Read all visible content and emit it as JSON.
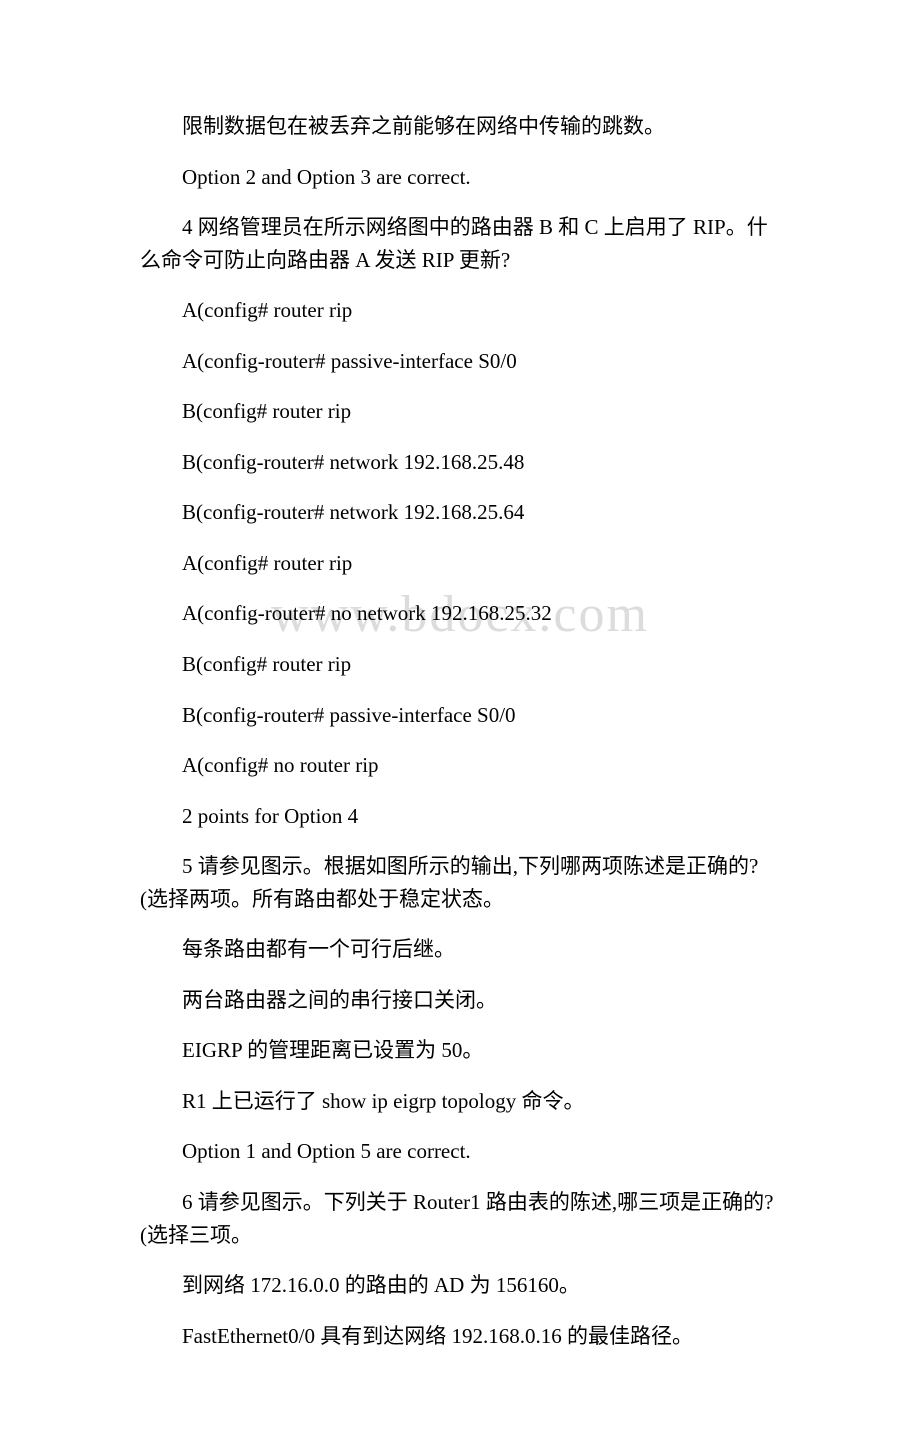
{
  "watermark": "www.bdocx.com",
  "body": {
    "background_color": "#ffffff",
    "text_color": "#000000",
    "watermark_color": "#dcdcdc",
    "font_size_pt": 16,
    "watermark_font_size_pt": 40
  },
  "paragraphs": [
    "限制数据包在被丢弃之前能够在网络中传输的跳数。",
    "Option 2 and Option 3 are correct.",
    "4 网络管理员在所示网络图中的路由器 B 和 C 上启用了 RIP。什么命令可防止向路由器 A 发送 RIP 更新?",
    "A(config# router rip",
    "A(config-router# passive-interface S0/0",
    "B(config# router rip",
    "B(config-router# network 192.168.25.48",
    "B(config-router# network 192.168.25.64",
    "A(config# router rip",
    "A(config-router# no network 192.168.25.32",
    "B(config# router rip",
    "B(config-router# passive-interface S0/0",
    "A(config# no router rip",
    "2 points for Option 4",
    "5 请参见图示。根据如图所示的输出,下列哪两项陈述是正确的?(选择两项。所有路由都处于稳定状态。",
    "每条路由都有一个可行后继。",
    "两台路由器之间的串行接口关闭。",
    "EIGRP 的管理距离已设置为 50。",
    "R1 上已运行了 show ip eigrp topology 命令。",
    "Option 1 and Option 5 are correct.",
    "6 请参见图示。下列关于 Router1 路由表的陈述,哪三项是正确的?(选择三项。",
    "到网络 172.16.0.0 的路由的 AD 为 156160。",
    "FastEthernet0/0 具有到达网络 192.168.0.16 的最佳路径。"
  ]
}
